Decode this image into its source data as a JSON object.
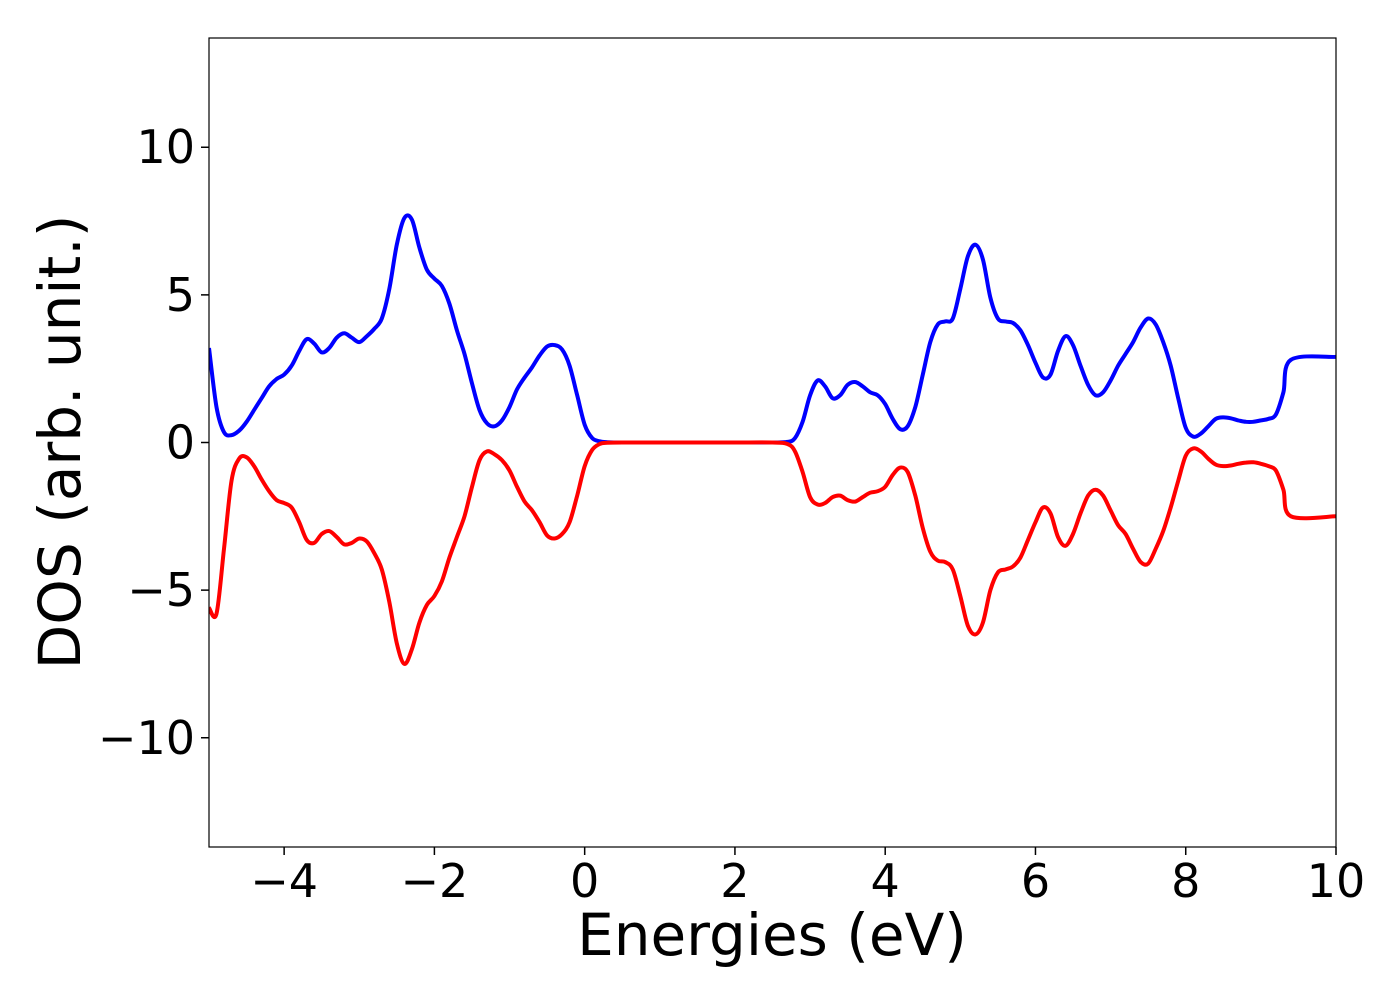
{
  "chart_data": {
    "type": "line",
    "title": "",
    "xlabel": "Energies (eV)",
    "ylabel": "DOS (arb. unit.)",
    "xlim": [
      -5,
      10
    ],
    "ylim": [
      -13.7,
      13.7
    ],
    "xticks": [
      -4,
      -2,
      0,
      2,
      4,
      6,
      8,
      10
    ],
    "yticks": [
      -10,
      -5,
      0,
      5,
      10
    ],
    "xtick_labels": [
      "−4",
      "−2",
      "0",
      "2",
      "4",
      "6",
      "8",
      "10"
    ],
    "ytick_labels": [
      "−10",
      "−5",
      "0",
      "5",
      "10"
    ],
    "grid": false,
    "legend": "none",
    "series": [
      {
        "color": "#0000ff",
        "points": [
          [
            -5.0,
            3.2
          ],
          [
            -4.9,
            1.2
          ],
          [
            -4.8,
            0.35
          ],
          [
            -4.7,
            0.25
          ],
          [
            -4.6,
            0.4
          ],
          [
            -4.5,
            0.7
          ],
          [
            -4.4,
            1.1
          ],
          [
            -4.3,
            1.5
          ],
          [
            -4.2,
            1.9
          ],
          [
            -4.1,
            2.15
          ],
          [
            -4.0,
            2.3
          ],
          [
            -3.9,
            2.6
          ],
          [
            -3.8,
            3.1
          ],
          [
            -3.7,
            3.5
          ],
          [
            -3.6,
            3.35
          ],
          [
            -3.5,
            3.05
          ],
          [
            -3.4,
            3.2
          ],
          [
            -3.3,
            3.55
          ],
          [
            -3.2,
            3.7
          ],
          [
            -3.1,
            3.55
          ],
          [
            -3.0,
            3.4
          ],
          [
            -2.9,
            3.6
          ],
          [
            -2.8,
            3.85
          ],
          [
            -2.7,
            4.2
          ],
          [
            -2.6,
            5.2
          ],
          [
            -2.5,
            6.7
          ],
          [
            -2.4,
            7.6
          ],
          [
            -2.3,
            7.55
          ],
          [
            -2.2,
            6.6
          ],
          [
            -2.1,
            5.85
          ],
          [
            -2.0,
            5.55
          ],
          [
            -1.9,
            5.3
          ],
          [
            -1.8,
            4.7
          ],
          [
            -1.7,
            3.8
          ],
          [
            -1.6,
            3.0
          ],
          [
            -1.5,
            2.0
          ],
          [
            -1.4,
            1.1
          ],
          [
            -1.3,
            0.65
          ],
          [
            -1.2,
            0.55
          ],
          [
            -1.1,
            0.75
          ],
          [
            -1.0,
            1.2
          ],
          [
            -0.9,
            1.8
          ],
          [
            -0.8,
            2.2
          ],
          [
            -0.7,
            2.55
          ],
          [
            -0.6,
            2.95
          ],
          [
            -0.5,
            3.25
          ],
          [
            -0.4,
            3.3
          ],
          [
            -0.3,
            3.15
          ],
          [
            -0.2,
            2.6
          ],
          [
            -0.1,
            1.6
          ],
          [
            0.0,
            0.6
          ],
          [
            0.1,
            0.15
          ],
          [
            0.2,
            0.04
          ],
          [
            0.3,
            0.01
          ],
          [
            0.5,
            0.0
          ],
          [
            1.0,
            0.0
          ],
          [
            1.5,
            0.0
          ],
          [
            2.0,
            0.0
          ],
          [
            2.5,
            0.0
          ],
          [
            2.7,
            0.02
          ],
          [
            2.8,
            0.15
          ],
          [
            2.9,
            0.7
          ],
          [
            3.0,
            1.6
          ],
          [
            3.1,
            2.1
          ],
          [
            3.2,
            1.9
          ],
          [
            3.3,
            1.5
          ],
          [
            3.4,
            1.6
          ],
          [
            3.5,
            1.95
          ],
          [
            3.6,
            2.05
          ],
          [
            3.7,
            1.9
          ],
          [
            3.8,
            1.7
          ],
          [
            3.9,
            1.6
          ],
          [
            4.0,
            1.3
          ],
          [
            4.1,
            0.8
          ],
          [
            4.2,
            0.45
          ],
          [
            4.3,
            0.55
          ],
          [
            4.4,
            1.2
          ],
          [
            4.5,
            2.3
          ],
          [
            4.6,
            3.4
          ],
          [
            4.7,
            4.0
          ],
          [
            4.8,
            4.1
          ],
          [
            4.9,
            4.2
          ],
          [
            5.0,
            5.2
          ],
          [
            5.1,
            6.3
          ],
          [
            5.2,
            6.7
          ],
          [
            5.3,
            6.2
          ],
          [
            5.4,
            4.9
          ],
          [
            5.5,
            4.2
          ],
          [
            5.6,
            4.1
          ],
          [
            5.7,
            4.05
          ],
          [
            5.8,
            3.8
          ],
          [
            5.9,
            3.3
          ],
          [
            6.0,
            2.7
          ],
          [
            6.1,
            2.2
          ],
          [
            6.2,
            2.3
          ],
          [
            6.3,
            3.1
          ],
          [
            6.4,
            3.6
          ],
          [
            6.5,
            3.3
          ],
          [
            6.6,
            2.6
          ],
          [
            6.7,
            1.95
          ],
          [
            6.8,
            1.6
          ],
          [
            6.9,
            1.7
          ],
          [
            7.0,
            2.1
          ],
          [
            7.1,
            2.6
          ],
          [
            7.2,
            3.0
          ],
          [
            7.3,
            3.4
          ],
          [
            7.4,
            3.9
          ],
          [
            7.5,
            4.2
          ],
          [
            7.6,
            4.0
          ],
          [
            7.7,
            3.4
          ],
          [
            7.8,
            2.6
          ],
          [
            7.9,
            1.5
          ],
          [
            8.0,
            0.5
          ],
          [
            8.1,
            0.2
          ],
          [
            8.2,
            0.3
          ],
          [
            8.3,
            0.55
          ],
          [
            8.4,
            0.8
          ],
          [
            8.5,
            0.85
          ],
          [
            8.6,
            0.82
          ],
          [
            8.7,
            0.75
          ],
          [
            8.8,
            0.7
          ],
          [
            8.9,
            0.7
          ],
          [
            9.0,
            0.75
          ],
          [
            9.1,
            0.8
          ],
          [
            9.2,
            0.95
          ],
          [
            9.3,
            1.7
          ],
          [
            9.4,
            2.8
          ],
          [
            10.0,
            2.9
          ]
        ]
      },
      {
        "color": "#ff0000",
        "points": [
          [
            -5.0,
            -5.6
          ],
          [
            -4.9,
            -5.8
          ],
          [
            -4.8,
            -3.6
          ],
          [
            -4.7,
            -1.3
          ],
          [
            -4.6,
            -0.55
          ],
          [
            -4.5,
            -0.5
          ],
          [
            -4.4,
            -0.8
          ],
          [
            -4.3,
            -1.25
          ],
          [
            -4.2,
            -1.65
          ],
          [
            -4.1,
            -1.95
          ],
          [
            -4.0,
            -2.05
          ],
          [
            -3.9,
            -2.2
          ],
          [
            -3.8,
            -2.7
          ],
          [
            -3.7,
            -3.3
          ],
          [
            -3.6,
            -3.4
          ],
          [
            -3.5,
            -3.1
          ],
          [
            -3.4,
            -3.0
          ],
          [
            -3.3,
            -3.2
          ],
          [
            -3.2,
            -3.45
          ],
          [
            -3.1,
            -3.4
          ],
          [
            -3.0,
            -3.25
          ],
          [
            -2.9,
            -3.35
          ],
          [
            -2.8,
            -3.75
          ],
          [
            -2.7,
            -4.3
          ],
          [
            -2.6,
            -5.4
          ],
          [
            -2.5,
            -6.8
          ],
          [
            -2.4,
            -7.5
          ],
          [
            -2.3,
            -7.0
          ],
          [
            -2.2,
            -6.1
          ],
          [
            -2.1,
            -5.5
          ],
          [
            -2.0,
            -5.2
          ],
          [
            -1.9,
            -4.7
          ],
          [
            -1.8,
            -3.9
          ],
          [
            -1.7,
            -3.2
          ],
          [
            -1.6,
            -2.5
          ],
          [
            -1.5,
            -1.5
          ],
          [
            -1.4,
            -0.6
          ],
          [
            -1.3,
            -0.3
          ],
          [
            -1.2,
            -0.4
          ],
          [
            -1.1,
            -0.6
          ],
          [
            -1.0,
            -0.95
          ],
          [
            -0.9,
            -1.5
          ],
          [
            -0.8,
            -2.0
          ],
          [
            -0.7,
            -2.3
          ],
          [
            -0.6,
            -2.7
          ],
          [
            -0.5,
            -3.15
          ],
          [
            -0.4,
            -3.25
          ],
          [
            -0.3,
            -3.1
          ],
          [
            -0.2,
            -2.7
          ],
          [
            -0.1,
            -1.8
          ],
          [
            0.0,
            -0.8
          ],
          [
            0.1,
            -0.25
          ],
          [
            0.2,
            -0.05
          ],
          [
            0.3,
            -0.01
          ],
          [
            0.5,
            0.0
          ],
          [
            1.0,
            0.0
          ],
          [
            1.5,
            0.0
          ],
          [
            2.0,
            0.0
          ],
          [
            2.5,
            0.0
          ],
          [
            2.7,
            -0.05
          ],
          [
            2.8,
            -0.3
          ],
          [
            2.9,
            -1.0
          ],
          [
            3.0,
            -1.85
          ],
          [
            3.1,
            -2.1
          ],
          [
            3.2,
            -2.05
          ],
          [
            3.3,
            -1.85
          ],
          [
            3.4,
            -1.8
          ],
          [
            3.5,
            -1.95
          ],
          [
            3.6,
            -2.0
          ],
          [
            3.7,
            -1.85
          ],
          [
            3.8,
            -1.7
          ],
          [
            3.9,
            -1.65
          ],
          [
            4.0,
            -1.5
          ],
          [
            4.1,
            -1.1
          ],
          [
            4.2,
            -0.85
          ],
          [
            4.3,
            -1.0
          ],
          [
            4.4,
            -1.8
          ],
          [
            4.5,
            -2.9
          ],
          [
            4.6,
            -3.7
          ],
          [
            4.7,
            -4.0
          ],
          [
            4.8,
            -4.05
          ],
          [
            4.9,
            -4.3
          ],
          [
            5.0,
            -5.2
          ],
          [
            5.1,
            -6.2
          ],
          [
            5.2,
            -6.5
          ],
          [
            5.3,
            -6.1
          ],
          [
            5.4,
            -5.0
          ],
          [
            5.5,
            -4.4
          ],
          [
            5.6,
            -4.3
          ],
          [
            5.7,
            -4.2
          ],
          [
            5.8,
            -3.9
          ],
          [
            5.9,
            -3.3
          ],
          [
            6.0,
            -2.7
          ],
          [
            6.1,
            -2.2
          ],
          [
            6.2,
            -2.4
          ],
          [
            6.3,
            -3.2
          ],
          [
            6.4,
            -3.5
          ],
          [
            6.5,
            -3.1
          ],
          [
            6.6,
            -2.4
          ],
          [
            6.7,
            -1.8
          ],
          [
            6.8,
            -1.6
          ],
          [
            6.9,
            -1.8
          ],
          [
            7.0,
            -2.3
          ],
          [
            7.1,
            -2.8
          ],
          [
            7.2,
            -3.1
          ],
          [
            7.3,
            -3.6
          ],
          [
            7.4,
            -4.05
          ],
          [
            7.5,
            -4.1
          ],
          [
            7.6,
            -3.6
          ],
          [
            7.7,
            -3.0
          ],
          [
            7.8,
            -2.2
          ],
          [
            7.9,
            -1.3
          ],
          [
            8.0,
            -0.45
          ],
          [
            8.1,
            -0.2
          ],
          [
            8.2,
            -0.3
          ],
          [
            8.3,
            -0.55
          ],
          [
            8.4,
            -0.75
          ],
          [
            8.5,
            -0.8
          ],
          [
            8.6,
            -0.78
          ],
          [
            8.7,
            -0.72
          ],
          [
            8.8,
            -0.68
          ],
          [
            8.9,
            -0.67
          ],
          [
            9.0,
            -0.72
          ],
          [
            9.1,
            -0.8
          ],
          [
            9.2,
            -0.95
          ],
          [
            9.3,
            -1.6
          ],
          [
            9.4,
            -2.5
          ],
          [
            10.0,
            -2.5
          ]
        ]
      }
    ]
  }
}
